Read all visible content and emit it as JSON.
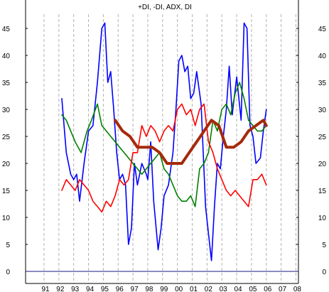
{
  "chart_data": {
    "type": "line",
    "title": "+DI, -DI, ADX, DI",
    "xlabel": "",
    "ylabel": "",
    "x_ticks": [
      "91",
      "92",
      "93",
      "94",
      "95",
      "96",
      "97",
      "98",
      "99",
      "00",
      "01",
      "02",
      "03",
      "04",
      "05",
      "06",
      "07",
      "08"
    ],
    "y_ticks": [
      0,
      5,
      10,
      15,
      20,
      25,
      30,
      35,
      40,
      45
    ],
    "ylim": [
      0,
      48
    ],
    "xlim": [
      1990.5,
      2008.7
    ],
    "grid": {
      "vertical": true,
      "horizontal": false,
      "style": "dashed"
    },
    "zero_line": true,
    "y_axis_both_sides": true,
    "series": [
      {
        "color": "#0000ff",
        "width": 1.6,
        "x": [
          1992.2,
          1992.5,
          1992.8,
          1993.0,
          1993.2,
          1993.4,
          1993.7,
          1994.0,
          1994.3,
          1994.6,
          1994.9,
          1995.1,
          1995.3,
          1995.5,
          1995.7,
          1995.9,
          1996.1,
          1996.3,
          1996.5,
          1996.7,
          1996.9,
          1997.1,
          1997.3,
          1997.6,
          1997.9,
          1998.0,
          1998.2,
          1998.4,
          1998.7,
          1998.9,
          1999.1,
          1999.4,
          1999.7,
          1999.9,
          2000.1,
          2000.3,
          2000.5,
          2000.7,
          2000.9,
          2001.1,
          2001.3,
          2001.6,
          2001.9,
          2002.1,
          2002.3,
          2002.5,
          2002.7,
          2002.9,
          2003.1,
          2003.3,
          2003.5,
          2003.7,
          2004.0,
          2004.3,
          2004.5,
          2004.7,
          2004.9,
          2005.1,
          2005.3,
          2005.6,
          2005.8,
          2006.0
        ],
        "values": [
          32,
          22,
          18,
          17,
          18,
          13,
          20,
          26,
          27,
          35,
          45,
          46,
          35,
          37,
          30,
          22,
          17,
          18,
          16,
          5,
          8,
          20,
          16,
          20,
          18,
          17,
          24,
          13,
          4,
          8,
          14,
          16,
          22,
          30,
          39,
          40,
          37,
          38,
          32,
          33,
          37,
          31,
          12,
          7,
          2,
          12,
          20,
          19,
          25,
          30,
          38,
          29,
          36,
          28,
          46,
          45,
          27,
          25,
          20,
          21,
          26,
          30
        ]
      },
      {
        "color": "#008000",
        "width": 1.6,
        "x": [
          1992.2,
          1992.5,
          1992.8,
          1993.1,
          1993.5,
          1993.9,
          1994.2,
          1994.6,
          1994.9,
          1995.2,
          1995.5,
          1995.8,
          1996.1,
          1996.4,
          1996.7,
          1997.0,
          1997.3,
          1997.6,
          1997.9,
          1998.2,
          1998.5,
          1998.8,
          1999.1,
          1999.4,
          1999.7,
          2000.0,
          2000.3,
          2000.6,
          2000.9,
          2001.2,
          2001.5,
          2001.8,
          2002.1,
          2002.4,
          2002.7,
          2003.0,
          2003.3,
          2003.6,
          2003.9,
          2004.2,
          2004.5,
          2004.8,
          2005.1,
          2005.4,
          2005.7,
          2006.0
        ],
        "values": [
          29,
          28,
          26,
          24,
          22,
          26,
          28,
          31,
          27,
          26,
          25,
          24,
          23,
          22,
          21,
          20,
          19,
          18,
          19,
          20,
          21,
          22,
          19,
          18,
          16,
          14,
          13,
          13,
          14,
          12,
          19,
          20,
          22,
          28,
          26,
          30,
          31,
          29,
          33,
          35,
          32,
          28,
          27,
          26,
          26,
          27
        ]
      },
      {
        "color": "#ff0000",
        "width": 1.6,
        "x": [
          1992.2,
          1992.5,
          1992.8,
          1993.1,
          1993.4,
          1993.7,
          1994.0,
          1994.3,
          1994.6,
          1994.9,
          1995.2,
          1995.5,
          1995.8,
          1996.1,
          1996.4,
          1996.7,
          1997.0,
          1997.3,
          1997.6,
          1997.9,
          1998.2,
          1998.5,
          1998.8,
          1999.1,
          1999.4,
          1999.7,
          2000.0,
          2000.3,
          2000.6,
          2000.9,
          2001.2,
          2001.5,
          2001.8,
          2002.1,
          2002.4,
          2002.7,
          2003.0,
          2003.3,
          2003.6,
          2003.9,
          2004.2,
          2004.5,
          2004.8,
          2005.1,
          2005.4,
          2005.7,
          2006.0
        ],
        "values": [
          15,
          17,
          16,
          15,
          17,
          16,
          15,
          13,
          12,
          11,
          13,
          12,
          14,
          17,
          16,
          17,
          22,
          22,
          27,
          25,
          27,
          26,
          24,
          26,
          27,
          26,
          30,
          31,
          29,
          30,
          27,
          30,
          31,
          24,
          22,
          19,
          17,
          15,
          14,
          15,
          14,
          13,
          12,
          17,
          17,
          18,
          16
        ]
      },
      {
        "color": "#a52a0a",
        "width": 4,
        "x": [
          1995.8,
          1996.3,
          1996.8,
          1997.3,
          1997.8,
          1998.3,
          1998.8,
          1999.3,
          1999.8,
          2000.3,
          2000.8,
          2001.3,
          2001.8,
          2002.3,
          2002.8,
          2003.3,
          2003.8,
          2004.3,
          2004.8,
          2005.3,
          2005.8,
          2006.0
        ],
        "values": [
          28,
          26,
          25,
          23,
          23,
          23,
          22,
          20,
          20,
          20,
          22,
          24,
          26,
          28,
          27,
          23,
          23,
          24,
          26,
          27,
          28,
          27
        ]
      }
    ]
  }
}
